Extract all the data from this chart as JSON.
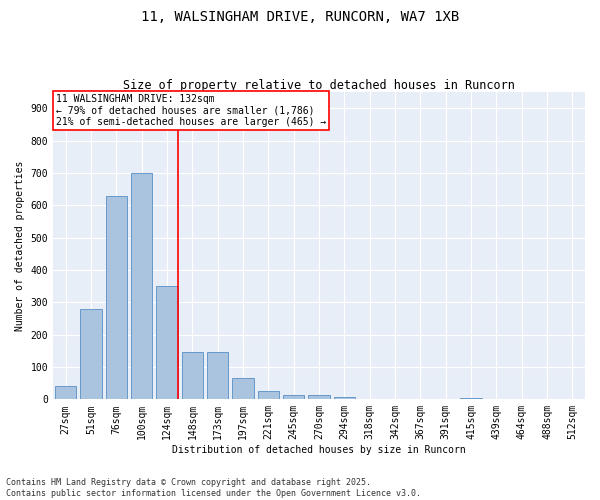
{
  "title": "11, WALSINGHAM DRIVE, RUNCORN, WA7 1XB",
  "subtitle": "Size of property relative to detached houses in Runcorn",
  "xlabel": "Distribution of detached houses by size in Runcorn",
  "ylabel": "Number of detached properties",
  "categories": [
    "27sqm",
    "51sqm",
    "76sqm",
    "100sqm",
    "124sqm",
    "148sqm",
    "173sqm",
    "197sqm",
    "221sqm",
    "245sqm",
    "270sqm",
    "294sqm",
    "318sqm",
    "342sqm",
    "367sqm",
    "391sqm",
    "415sqm",
    "439sqm",
    "464sqm",
    "488sqm",
    "512sqm"
  ],
  "values": [
    40,
    280,
    630,
    700,
    350,
    145,
    145,
    65,
    25,
    13,
    13,
    8,
    0,
    0,
    0,
    0,
    5,
    0,
    0,
    0,
    0
  ],
  "bar_color": "#aac4e0",
  "bar_edgecolor": "#6699cc",
  "vline_color": "red",
  "vline_x": 4.45,
  "annotation_title": "11 WALSINGHAM DRIVE: 132sqm",
  "annotation_line1": "← 79% of detached houses are smaller (1,786)",
  "annotation_line2": "21% of semi-detached houses are larger (465) →",
  "ylim": [
    0,
    950
  ],
  "yticks": [
    0,
    100,
    200,
    300,
    400,
    500,
    600,
    700,
    800,
    900
  ],
  "background_color": "#e8eef7",
  "footer_line1": "Contains HM Land Registry data © Crown copyright and database right 2025.",
  "footer_line2": "Contains public sector information licensed under the Open Government Licence v3.0.",
  "title_fontsize": 10,
  "subtitle_fontsize": 8.5,
  "axis_fontsize": 7,
  "tick_fontsize": 7,
  "footer_fontsize": 6,
  "annotation_fontsize": 7
}
